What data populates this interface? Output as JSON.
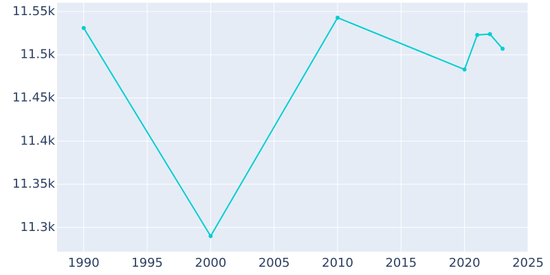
{
  "chart_data": {
    "type": "line",
    "x": [
      1990,
      2000,
      2010,
      2020,
      2021,
      2022,
      2023
    ],
    "values": [
      11531,
      11290,
      11543,
      11483,
      11523,
      11524,
      11507
    ],
    "color": "#00ced1",
    "xlim": [
      1987.9,
      2025
    ],
    "xticks": [
      1990,
      1995,
      2000,
      2005,
      2010,
      2015,
      2020,
      2025
    ],
    "ylim": [
      11272,
      11560.3
    ],
    "yticks": [
      {
        "value": 11300,
        "label": "11.3k"
      },
      {
        "value": 11350,
        "label": "11.35k"
      },
      {
        "value": 11400,
        "label": "11.4k"
      },
      {
        "value": 11450,
        "label": "11.45k"
      },
      {
        "value": 11500,
        "label": "11.5k"
      },
      {
        "value": 11550,
        "label": "11.55k"
      }
    ],
    "grid": true
  }
}
